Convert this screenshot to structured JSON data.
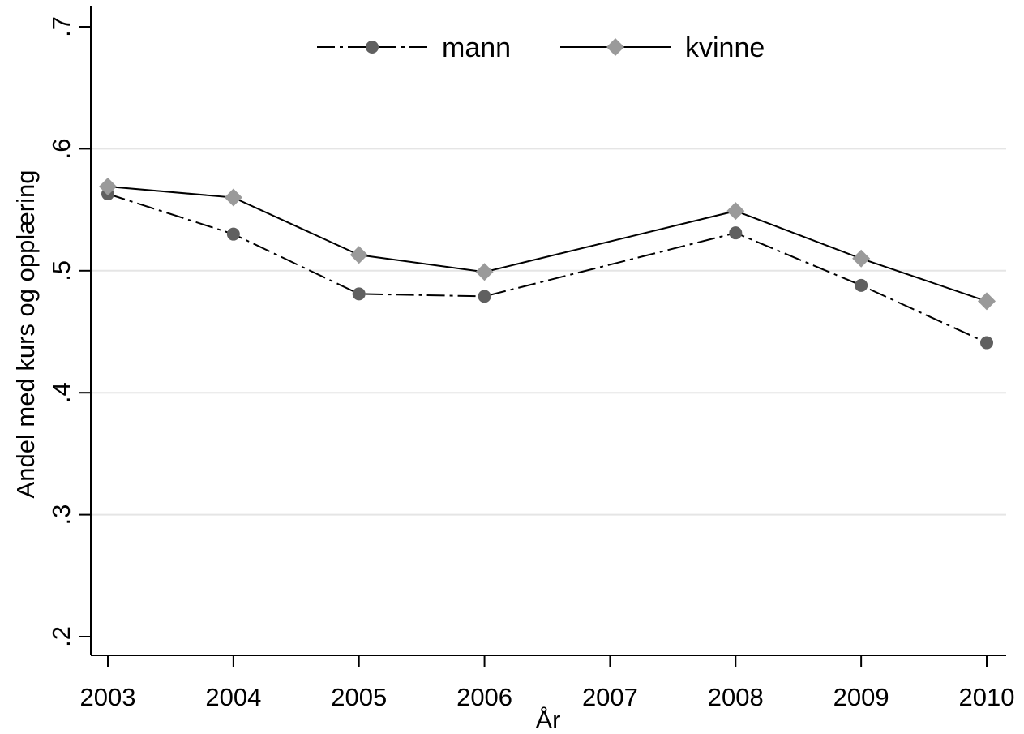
{
  "chart_data": {
    "type": "line",
    "title": "",
    "xlabel": "År",
    "ylabel": "Andel med kurs og opplæring",
    "x": [
      2003,
      2004,
      2005,
      2006,
      2007,
      2008,
      2009,
      2010
    ],
    "x_tick_labels": [
      "2003",
      "2004",
      "2005",
      "2006",
      "2007",
      "2008",
      "2009",
      "2010"
    ],
    "y_tick_labels": [
      ".2",
      ".3",
      ".4",
      ".5",
      ".6",
      ".7"
    ],
    "y_ticks": [
      0.2,
      0.3,
      0.4,
      0.5,
      0.6,
      0.7
    ],
    "xlim": [
      2003,
      2010
    ],
    "ylim": [
      0.2,
      0.7
    ],
    "grid": "horizontal",
    "legend_position": "top",
    "series": [
      {
        "name": "mann",
        "color": "#606060",
        "line_style": "dash-dot",
        "marker": "circle",
        "points": [
          [
            2003,
            0.563
          ],
          [
            2004,
            0.53
          ],
          [
            2005,
            0.481
          ],
          [
            2006,
            0.479
          ],
          [
            2008,
            0.531
          ],
          [
            2009,
            0.488
          ],
          [
            2010,
            0.441
          ]
        ]
      },
      {
        "name": "kvinne",
        "color": "#9a9a9a",
        "line_style": "solid",
        "marker": "diamond",
        "points": [
          [
            2003,
            0.569
          ],
          [
            2004,
            0.56
          ],
          [
            2005,
            0.513
          ],
          [
            2006,
            0.499
          ],
          [
            2008,
            0.549
          ],
          [
            2009,
            0.51
          ],
          [
            2010,
            0.475
          ]
        ]
      }
    ]
  }
}
